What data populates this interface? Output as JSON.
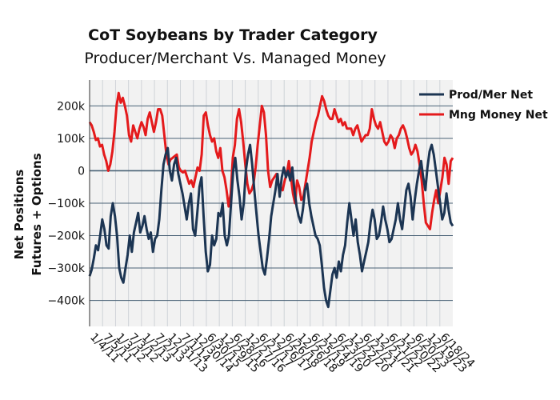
{
  "chart_data": {
    "type": "line",
    "title": "CoT Soybeans by Trader Category",
    "subtitle": "Producer/Merchant Vs. Managed Money",
    "ylabel_line1": "Net Positions",
    "ylabel_line2": "Futures + Options",
    "ylim": [
      -480000,
      280000
    ],
    "y_ticks": [
      {
        "value": 200000,
        "label": "200k"
      },
      {
        "value": 100000,
        "label": "100k"
      },
      {
        "value": 0,
        "label": "0"
      },
      {
        "value": -100000,
        "label": "−100k"
      },
      {
        "value": -200000,
        "label": "−200k"
      },
      {
        "value": -300000,
        "label": "−300k"
      },
      {
        "value": -400000,
        "label": "−400k"
      }
    ],
    "x_ticks": [
      "1/4/11",
      "7/5/11",
      "1/3/12",
      "7/3/12",
      "1/2/13",
      "7/2/13",
      "12/31/13",
      "7/1/14",
      "12/30/14",
      "6/30/15",
      "12/29/15",
      "6/28/16",
      "12/27/16",
      "6/27/17",
      "12/26/17",
      "6/26/18",
      "12/26/18",
      "6/25/19",
      "12/24/19",
      "6/23/20",
      "12/22/20",
      "6/22/21",
      "12/21/21",
      "6/21/22",
      "12/20/22",
      "6/20/23",
      "12/19/23",
      "6/18/24"
    ],
    "grid": true,
    "legend_position": "top-right",
    "colors": {
      "prod_mer": "#1c3553",
      "mng_money": "#e41a1c",
      "plot_bg": "#f2f2f2",
      "hgrid": "#4a6276",
      "vgrid": "#cfd3d8"
    },
    "series": [
      {
        "name": "Prod/Mer Net",
        "key": "prod_mer",
        "values": [
          -325000,
          -305000,
          -270000,
          -230000,
          -245000,
          -200000,
          -150000,
          -180000,
          -230000,
          -240000,
          -140000,
          -100000,
          -140000,
          -200000,
          -300000,
          -330000,
          -345000,
          -300000,
          -260000,
          -200000,
          -250000,
          -190000,
          -160000,
          -130000,
          -190000,
          -170000,
          -140000,
          -180000,
          -210000,
          -190000,
          -250000,
          -210000,
          -200000,
          -150000,
          -60000,
          20000,
          50000,
          70000,
          0,
          -30000,
          20000,
          40000,
          -10000,
          -40000,
          -70000,
          -110000,
          -150000,
          -100000,
          -70000,
          -180000,
          -200000,
          -130000,
          -50000,
          -20000,
          -140000,
          -250000,
          -310000,
          -290000,
          -200000,
          -230000,
          -210000,
          -130000,
          -140000,
          -100000,
          -200000,
          -230000,
          -200000,
          -100000,
          0,
          40000,
          -30000,
          -80000,
          -150000,
          -100000,
          0,
          50000,
          80000,
          20000,
          -60000,
          -130000,
          -200000,
          -250000,
          -300000,
          -320000,
          -270000,
          -210000,
          -140000,
          -100000,
          -60000,
          -10000,
          -80000,
          -20000,
          10000,
          -20000,
          0,
          -30000,
          10000,
          -60000,
          -110000,
          -140000,
          -160000,
          -120000,
          -60000,
          -40000,
          -100000,
          -140000,
          -170000,
          -200000,
          -210000,
          -230000,
          -290000,
          -360000,
          -400000,
          -420000,
          -370000,
          -320000,
          -300000,
          -330000,
          -280000,
          -310000,
          -260000,
          -230000,
          -160000,
          -100000,
          -150000,
          -200000,
          -150000,
          -220000,
          -260000,
          -310000,
          -280000,
          -250000,
          -220000,
          -160000,
          -120000,
          -150000,
          -210000,
          -200000,
          -160000,
          -110000,
          -150000,
          -180000,
          -220000,
          -210000,
          -180000,
          -150000,
          -100000,
          -150000,
          -180000,
          -120000,
          -60000,
          -40000,
          -80000,
          -150000,
          -90000,
          -40000,
          0,
          30000,
          -20000,
          -60000,
          10000,
          60000,
          80000,
          50000,
          0,
          -50000,
          -100000,
          -150000,
          -130000,
          -70000,
          -120000,
          -160000,
          -170000
        ]
      },
      {
        "name": "Mng Money Net",
        "key": "mng_money",
        "values": [
          150000,
          140000,
          120000,
          95000,
          100000,
          75000,
          80000,
          50000,
          30000,
          0,
          20000,
          60000,
          120000,
          200000,
          240000,
          210000,
          225000,
          200000,
          170000,
          110000,
          90000,
          140000,
          120000,
          100000,
          130000,
          150000,
          135000,
          110000,
          160000,
          180000,
          150000,
          120000,
          150000,
          190000,
          190000,
          170000,
          110000,
          50000,
          20000,
          35000,
          40000,
          45000,
          50000,
          10000,
          0,
          -5000,
          0,
          -20000,
          -40000,
          -30000,
          -50000,
          -20000,
          10000,
          0,
          50000,
          170000,
          180000,
          140000,
          110000,
          90000,
          100000,
          60000,
          40000,
          70000,
          0,
          -20000,
          -60000,
          -110000,
          -70000,
          40000,
          80000,
          160000,
          190000,
          150000,
          90000,
          20000,
          -40000,
          -70000,
          -60000,
          -40000,
          10000,
          80000,
          140000,
          200000,
          180000,
          110000,
          0,
          -50000,
          -30000,
          -20000,
          -10000,
          -40000,
          -50000,
          -60000,
          -30000,
          -10000,
          30000,
          -20000,
          -70000,
          -100000,
          -30000,
          -50000,
          -90000,
          -80000,
          -40000,
          0,
          40000,
          90000,
          120000,
          150000,
          170000,
          200000,
          230000,
          215000,
          190000,
          170000,
          160000,
          160000,
          190000,
          170000,
          150000,
          160000,
          140000,
          150000,
          130000,
          130000,
          130000,
          110000,
          130000,
          140000,
          115000,
          90000,
          100000,
          110000,
          110000,
          130000,
          190000,
          160000,
          140000,
          130000,
          150000,
          120000,
          90000,
          80000,
          90000,
          110000,
          100000,
          70000,
          100000,
          110000,
          130000,
          140000,
          125000,
          100000,
          70000,
          50000,
          60000,
          80000,
          60000,
          20000,
          -30000,
          -100000,
          -160000,
          -170000,
          -180000,
          -130000,
          -90000,
          -60000,
          -100000,
          -60000,
          -20000,
          40000,
          20000,
          -40000,
          30000,
          40000
        ]
      }
    ]
  }
}
